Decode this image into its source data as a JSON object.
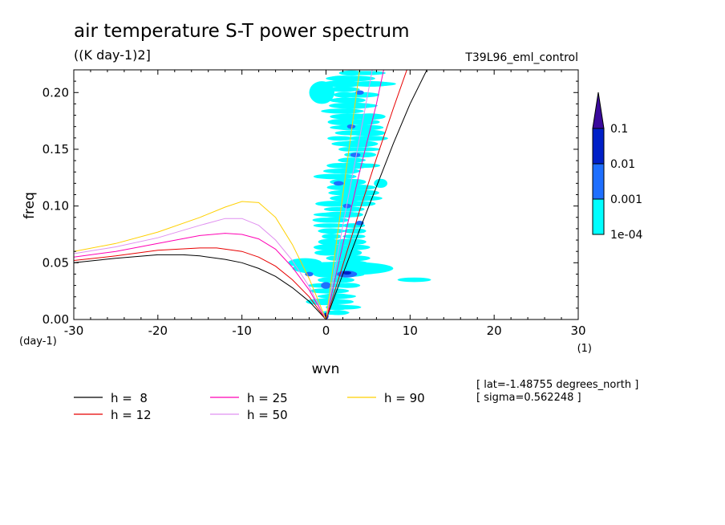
{
  "chart_data": {
    "type": "contour",
    "title": "air temperature S-T power spectrum",
    "units": "((K day-1)2]",
    "run_label": "T39L96_eml_control",
    "xlabel": "wvn",
    "ylabel": "freq",
    "xunit": "(1)",
    "yunit": "(day-1)",
    "xlim": [
      -30,
      30
    ],
    "ylim": [
      0,
      0.22
    ],
    "x_ticks": [
      -30,
      -20,
      -10,
      0,
      10,
      20,
      30
    ],
    "x_tick_labels": [
      "-30",
      "-20",
      "-10",
      "0",
      "10",
      "20",
      "30"
    ],
    "y_ticks": [
      0.0,
      0.05,
      0.1,
      0.15,
      0.2
    ],
    "y_tick_labels": [
      "0.00",
      "0.05",
      "0.10",
      "0.15",
      "0.20"
    ],
    "colorbar": {
      "levels": [
        0.0001,
        0.001,
        0.01,
        0.1
      ],
      "labels": [
        "1e-04",
        "0.001",
        "0.01",
        "0.1"
      ],
      "colors": [
        "#00ffff",
        "#1e6fff",
        "#0020c8",
        "#3a0a9c"
      ]
    },
    "contour_blobs": [
      {
        "level": 0,
        "x": -2.5,
        "y": 0.05,
        "rx": 2.0,
        "ry": 0.004
      },
      {
        "level": 0,
        "x": 2.0,
        "y": 0.045,
        "rx": 6.0,
        "ry": 0.006
      },
      {
        "level": 0,
        "x": 10.5,
        "y": 0.035,
        "rx": 2.0,
        "ry": 0.002
      },
      {
        "level": 0,
        "x": -0.5,
        "y": 0.2,
        "rx": 1.5,
        "ry": 0.01
      },
      {
        "level": 0,
        "x": 6.5,
        "y": 0.12,
        "rx": 0.8,
        "ry": 0.004
      },
      {
        "level": 1,
        "x": 2.5,
        "y": 0.04,
        "rx": 1.2,
        "ry": 0.003
      },
      {
        "level": 1,
        "x": 0.0,
        "y": 0.03,
        "rx": 0.6,
        "ry": 0.003
      },
      {
        "level": 1,
        "x": 1.5,
        "y": 0.12,
        "rx": 0.6,
        "ry": 0.002
      },
      {
        "level": 1,
        "x": 3.5,
        "y": 0.145,
        "rx": 0.6,
        "ry": 0.002
      },
      {
        "level": 1,
        "x": 2.5,
        "y": 0.1,
        "rx": 0.5,
        "ry": 0.002
      },
      {
        "level": 1,
        "x": 4.0,
        "y": 0.085,
        "rx": 0.5,
        "ry": 0.002
      },
      {
        "level": 1,
        "x": 3.0,
        "y": 0.17,
        "rx": 0.5,
        "ry": 0.002
      },
      {
        "level": 1,
        "x": 4.0,
        "y": 0.2,
        "rx": 0.5,
        "ry": 0.002
      },
      {
        "level": 1,
        "x": -2.0,
        "y": 0.04,
        "rx": 0.5,
        "ry": 0.002
      },
      {
        "level": 2,
        "x": 2.5,
        "y": 0.041,
        "rx": 0.5,
        "ry": 0.0015
      },
      {
        "level": 2,
        "x": 0.0,
        "y": 0.003,
        "rx": 0.3,
        "ry": 0.003
      }
    ],
    "series": [
      {
        "name": "h =  8",
        "color": "#000000",
        "x": [
          -30,
          -25,
          -20,
          -17,
          -15,
          -12,
          -10,
          -8,
          -6,
          -4,
          -2,
          0,
          2,
          4,
          6,
          8,
          10,
          12
        ],
        "y": [
          0.05,
          0.054,
          0.057,
          0.057,
          0.056,
          0.053,
          0.05,
          0.045,
          0.038,
          0.028,
          0.016,
          0.0,
          0.04,
          0.079,
          0.117,
          0.155,
          0.19,
          0.22
        ]
      },
      {
        "name": "h = 12",
        "color": "#e80000",
        "x": [
          -30,
          -25,
          -20,
          -15,
          -13,
          -10,
          -8,
          -6,
          -4,
          -2,
          0,
          2,
          4,
          6,
          8,
          10
        ],
        "y": [
          0.052,
          0.056,
          0.061,
          0.063,
          0.063,
          0.06,
          0.055,
          0.047,
          0.035,
          0.02,
          0.0,
          0.048,
          0.096,
          0.142,
          0.186,
          0.228
        ]
      },
      {
        "name": "h = 25",
        "color": "#ff00b4",
        "x": [
          -30,
          -25,
          -20,
          -15,
          -12,
          -10,
          -8,
          -6,
          -4,
          -2,
          0,
          2,
          4,
          6,
          7
        ],
        "y": [
          0.055,
          0.06,
          0.067,
          0.074,
          0.076,
          0.075,
          0.071,
          0.062,
          0.046,
          0.026,
          0.0,
          0.066,
          0.13,
          0.19,
          0.225
        ]
      },
      {
        "name": "h = 50",
        "color": "#e090f0",
        "x": [
          -30,
          -25,
          -20,
          -15,
          -12,
          -10,
          -8,
          -6,
          -4,
          -2,
          0,
          2,
          4,
          5.5
        ],
        "y": [
          0.058,
          0.064,
          0.072,
          0.083,
          0.089,
          0.089,
          0.083,
          0.07,
          0.052,
          0.029,
          0.0,
          0.083,
          0.16,
          0.22
        ]
      },
      {
        "name": "h = 90",
        "color": "#ffd000",
        "x": [
          -30,
          -25,
          -20,
          -15,
          -12,
          -10,
          -8,
          -6,
          -4,
          -2,
          0,
          1,
          2,
          3,
          4
        ],
        "y": [
          0.06,
          0.067,
          0.077,
          0.09,
          0.099,
          0.104,
          0.103,
          0.09,
          0.066,
          0.036,
          0.0,
          0.055,
          0.11,
          0.165,
          0.22
        ]
      }
    ],
    "legend": [
      {
        "label": "h =  8",
        "color": "#000000"
      },
      {
        "label": "h = 12",
        "color": "#e80000"
      },
      {
        "label": "h = 25",
        "color": "#ff00b4"
      },
      {
        "label": "h = 50",
        "color": "#e090f0"
      },
      {
        "label": "h = 90",
        "color": "#ffd000"
      }
    ],
    "annotations": [
      "[ lat=-1.48755 degrees_north ]",
      "[ sigma=0.562248 ]"
    ]
  }
}
